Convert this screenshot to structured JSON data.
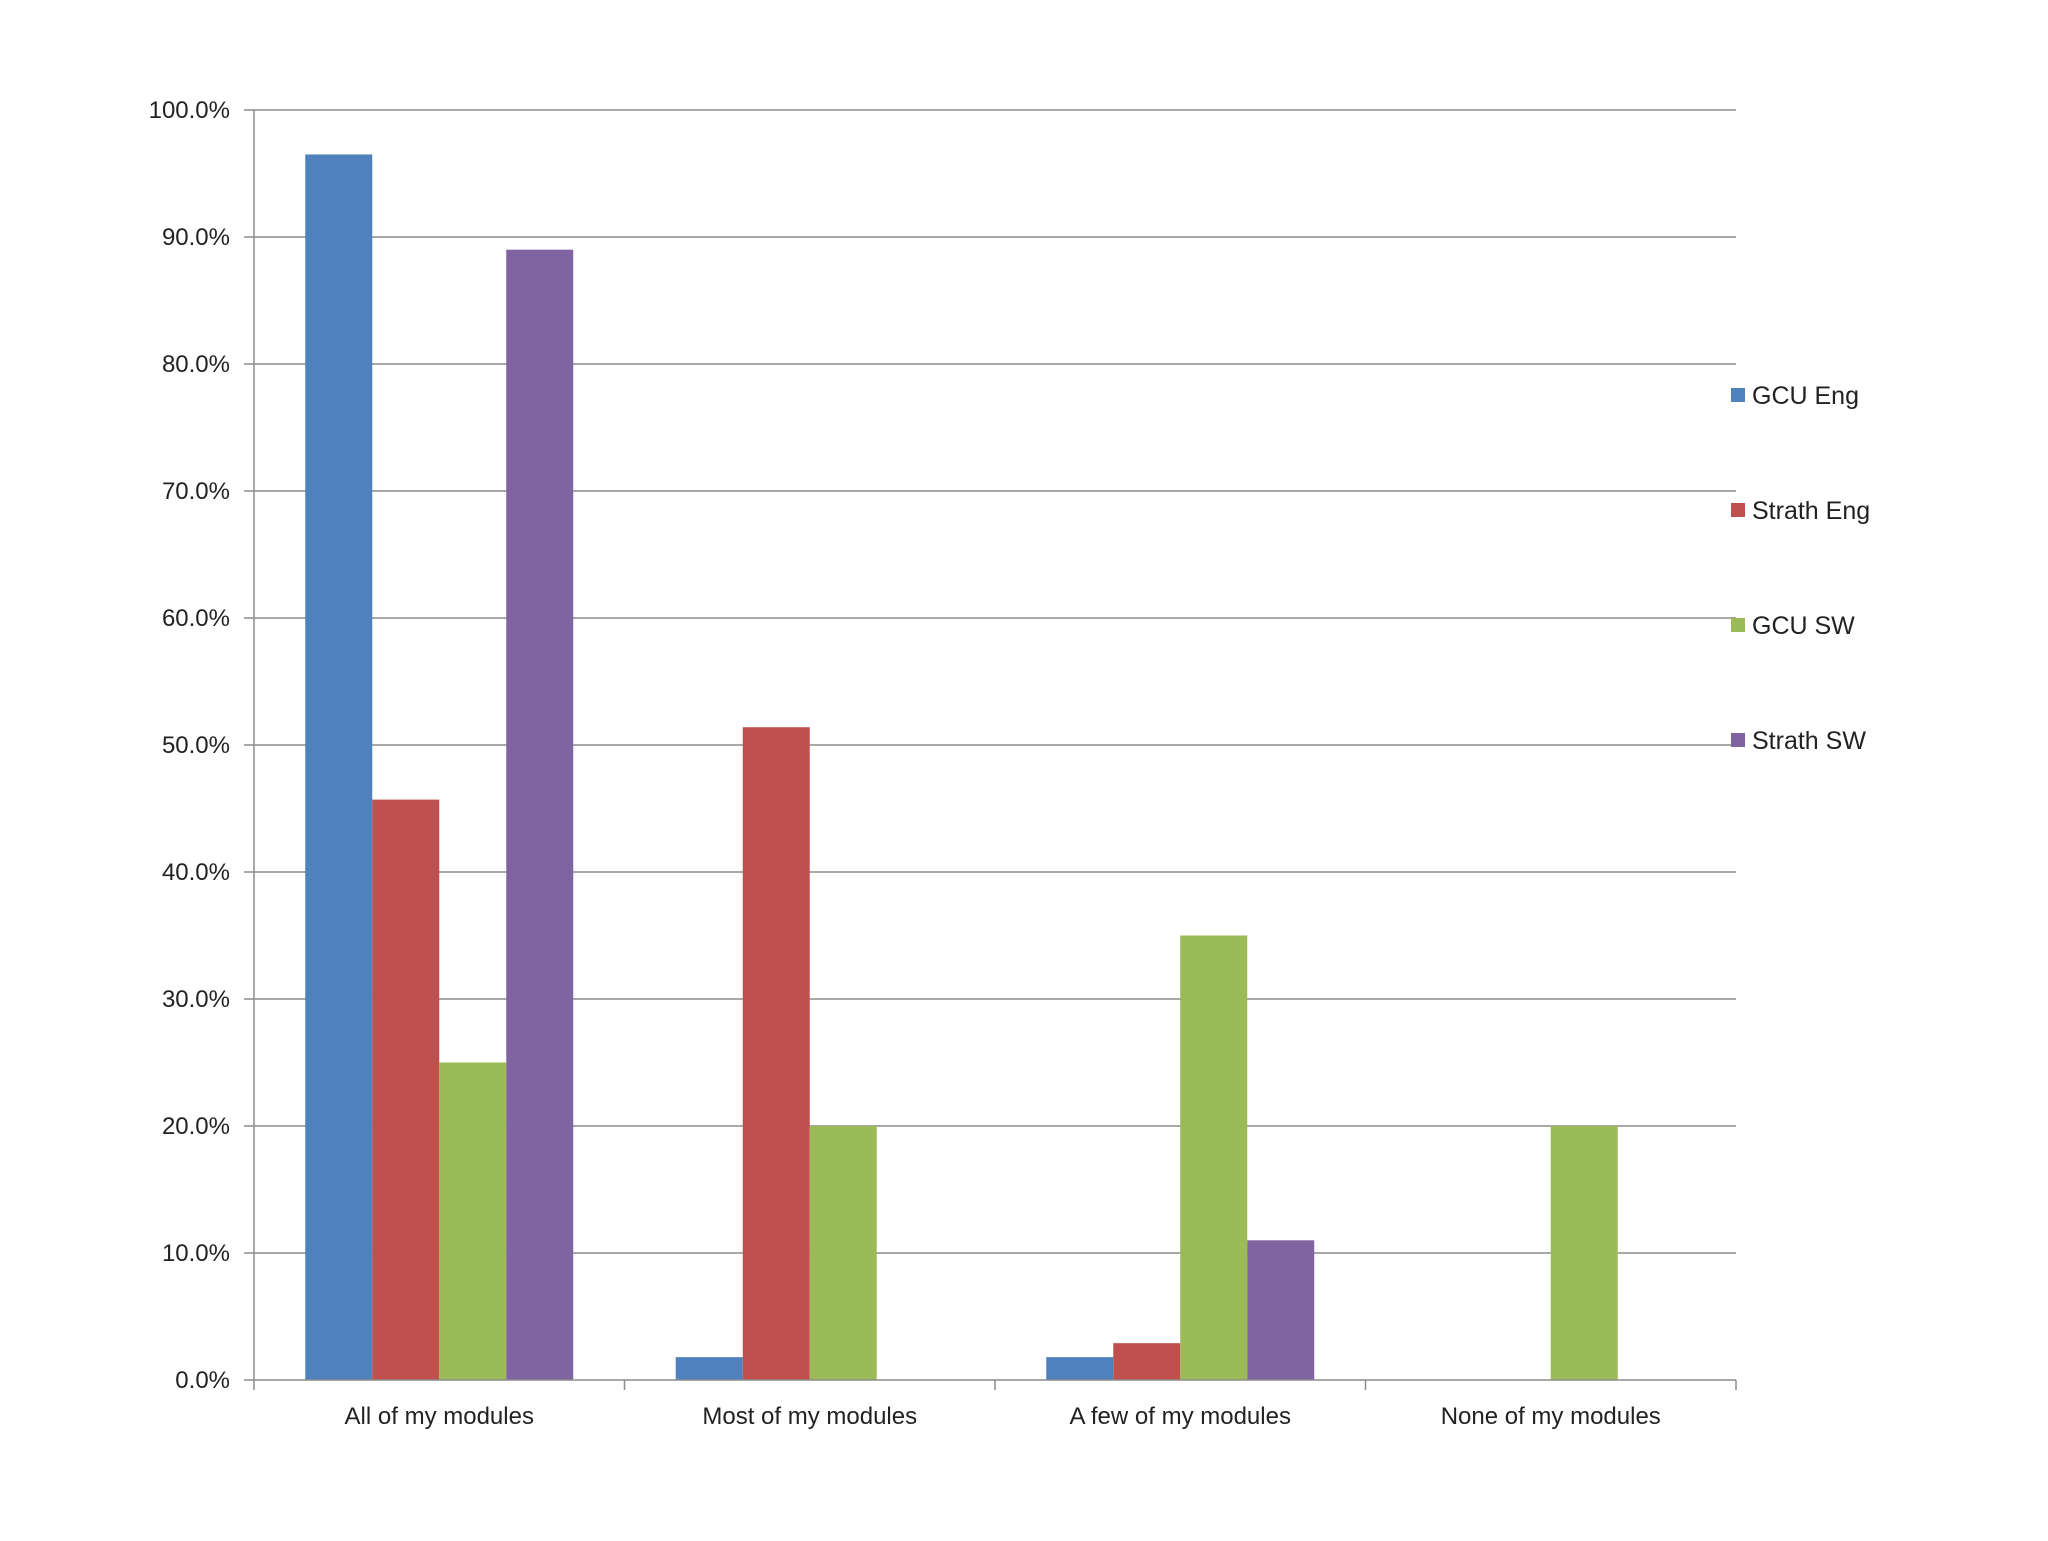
{
  "chart_data": {
    "type": "bar",
    "categories": [
      "All of my modules",
      "Most of my modules",
      "A few of my modules",
      "None of my modules"
    ],
    "series": [
      {
        "name": "GCU Eng",
        "color": "#4F81BD",
        "values": [
          96.5,
          1.8,
          1.8,
          0.0
        ]
      },
      {
        "name": "Strath Eng",
        "color": "#C0504D",
        "values": [
          45.7,
          51.4,
          2.9,
          0.0
        ]
      },
      {
        "name": "GCU SW",
        "color": "#9BBB59",
        "values": [
          25.0,
          20.0,
          35.0,
          20.0
        ]
      },
      {
        "name": "Strath SW",
        "color": "#8064A2",
        "values": [
          89.0,
          0.0,
          11.0,
          0.0
        ]
      }
    ],
    "ylim": [
      0,
      100
    ],
    "yticks": [
      "0.0%",
      "10.0%",
      "20.0%",
      "30.0%",
      "40.0%",
      "50.0%",
      "60.0%",
      "70.0%",
      "80.0%",
      "90.0%",
      "100.0%"
    ],
    "grid": true,
    "legend_position": "right"
  }
}
